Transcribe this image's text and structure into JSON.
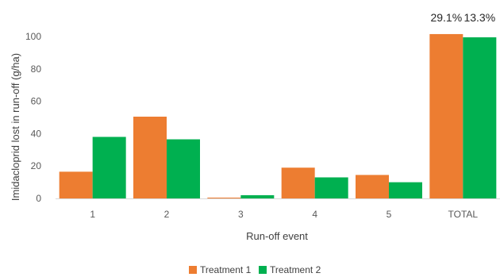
{
  "chart_data": {
    "type": "bar",
    "categories": [
      "1",
      "2",
      "3",
      "4",
      "5",
      "TOTAL"
    ],
    "series": [
      {
        "name": "Treatment 1",
        "color": "#ED7D31",
        "values": [
          16.5,
          50.5,
          0.5,
          19,
          14.5,
          101.5
        ]
      },
      {
        "name": "Treatment 2",
        "color": "#00B050",
        "values": [
          38,
          36.5,
          2,
          13,
          10,
          99.5
        ]
      }
    ],
    "data_labels": [
      {
        "text": "29.1%",
        "category": "TOTAL",
        "series": "Treatment 1"
      },
      {
        "text": "13.3%",
        "category": "TOTAL",
        "series": "Treatment 2"
      }
    ],
    "xlabel": "Run-off event",
    "ylabel": "Imidacloprid lost in run-off (g/ha)",
    "ylim": [
      0,
      100
    ],
    "yticks": [
      0,
      20,
      40,
      60,
      80,
      100
    ],
    "grid": false,
    "legend": "bottom"
  }
}
